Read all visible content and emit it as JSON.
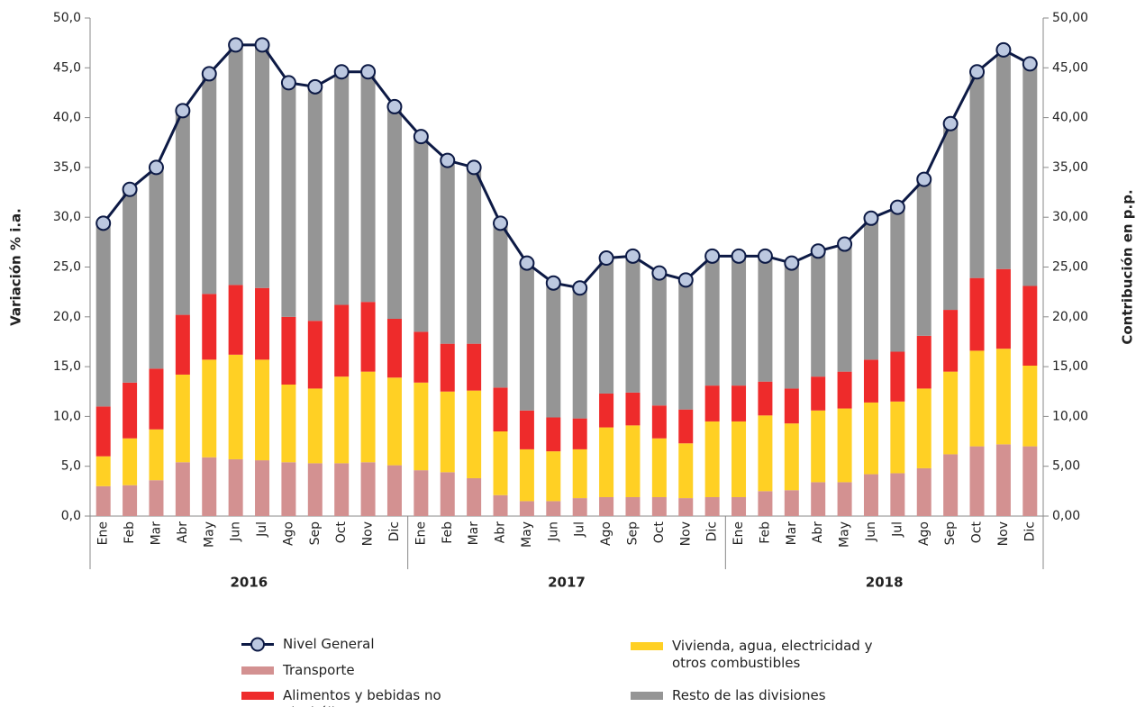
{
  "chart_data": {
    "type": "bar",
    "stacked": true,
    "categories": [
      "Ene",
      "Feb",
      "Mar",
      "Abr",
      "May",
      "Jun",
      "Jul",
      "Ago",
      "Sep",
      "Oct",
      "Nov",
      "Dic",
      "Ene",
      "Feb",
      "Mar",
      "Abr",
      "May",
      "Jun",
      "Jul",
      "Ago",
      "Sep",
      "Oct",
      "Nov",
      "Dic",
      "Ene",
      "Feb",
      "Mar",
      "Abr",
      "May",
      "Jun",
      "Jul",
      "Ago",
      "Sep",
      "Oct",
      "Nov",
      "Dic"
    ],
    "x_groups": [
      "2016",
      "2017",
      "2018"
    ],
    "ylabel": "Variación % i.a.",
    "y2label": "Contribución en p.p.",
    "ylim": [
      0,
      50
    ],
    "yticks": [
      {
        "value": 0,
        "label": "0,0"
      },
      {
        "value": 5,
        "label": "5,0"
      },
      {
        "value": 10,
        "label": "10,0"
      },
      {
        "value": 15,
        "label": "15,0"
      },
      {
        "value": 20,
        "label": "20,0"
      },
      {
        "value": 25,
        "label": "25,0"
      },
      {
        "value": 30,
        "label": "30,0"
      },
      {
        "value": 35,
        "label": "35,0"
      },
      {
        "value": 40,
        "label": "40,0"
      },
      {
        "value": 45,
        "label": "45,0"
      },
      {
        "value": 50,
        "label": "50,0"
      }
    ],
    "y2lim": [
      0,
      50
    ],
    "y2ticks": [
      {
        "value": 0,
        "label": "0,00"
      },
      {
        "value": 5,
        "label": "5,00"
      },
      {
        "value": 10,
        "label": "10,00"
      },
      {
        "value": 15,
        "label": "15,00"
      },
      {
        "value": 20,
        "label": "20,00"
      },
      {
        "value": 25,
        "label": "25,00"
      },
      {
        "value": 30,
        "label": "30,00"
      },
      {
        "value": 35,
        "label": "35,00"
      },
      {
        "value": 40,
        "label": "40,00"
      },
      {
        "value": 45,
        "label": "45,00"
      },
      {
        "value": 50,
        "label": "50,00"
      }
    ],
    "series": [
      {
        "name": "Transporte",
        "color": "#d39191",
        "axis": "y2",
        "values": [
          3.0,
          3.1,
          3.6,
          5.4,
          5.9,
          5.7,
          5.6,
          5.4,
          5.3,
          5.3,
          5.4,
          5.1,
          4.6,
          4.4,
          3.8,
          2.1,
          1.5,
          1.5,
          1.8,
          1.9,
          1.9,
          1.9,
          1.8,
          1.9,
          1.9,
          2.5,
          2.6,
          3.4,
          3.4,
          4.2,
          4.3,
          4.8,
          6.2,
          7.0,
          7.2,
          7.0
        ]
      },
      {
        "name": "Vivienda, agua, electricidad y otros combustibles",
        "color": "#ffd024",
        "axis": "y2",
        "values": [
          3.0,
          4.7,
          5.1,
          8.8,
          9.8,
          10.5,
          10.1,
          7.8,
          7.5,
          8.7,
          9.1,
          8.8,
          8.8,
          8.1,
          8.8,
          6.4,
          5.2,
          5.0,
          4.9,
          7.0,
          7.2,
          5.9,
          5.5,
          7.6,
          7.6,
          7.6,
          6.7,
          7.2,
          7.4,
          7.2,
          7.2,
          8.0,
          8.3,
          9.6,
          9.6,
          8.1
        ]
      },
      {
        "name": "Alimentos y bebidas no alcohólicas",
        "color": "#ee2b2b",
        "axis": "y2",
        "values": [
          5.0,
          5.6,
          6.1,
          6.0,
          6.6,
          7.0,
          7.2,
          6.8,
          6.8,
          7.2,
          7.0,
          5.9,
          5.1,
          4.8,
          4.7,
          4.4,
          3.9,
          3.4,
          3.1,
          3.4,
          3.3,
          3.3,
          3.4,
          3.6,
          3.6,
          3.4,
          3.5,
          3.4,
          3.7,
          4.3,
          5.0,
          5.3,
          6.2,
          7.3,
          8.0,
          8.0
        ]
      },
      {
        "name": "Resto de las divisiones",
        "color": "#959595",
        "axis": "y2",
        "values": [
          18.4,
          19.4,
          20.2,
          20.5,
          22.1,
          24.1,
          24.4,
          23.5,
          23.5,
          23.4,
          23.1,
          21.3,
          19.6,
          18.4,
          17.7,
          16.5,
          14.8,
          13.5,
          13.1,
          13.6,
          13.7,
          13.3,
          13.0,
          13.0,
          13.0,
          12.6,
          12.6,
          12.6,
          12.8,
          14.2,
          14.5,
          15.7,
          18.7,
          20.7,
          22.0,
          22.3
        ]
      },
      {
        "name": "Nivel General",
        "type": "line",
        "color": "#0d1a45",
        "marker_color": "#bcc8e0",
        "values": [
          29.4,
          32.8,
          35.0,
          40.7,
          44.4,
          47.3,
          47.3,
          43.5,
          43.1,
          44.6,
          44.6,
          41.1,
          38.1,
          35.7,
          35.0,
          29.4,
          25.4,
          23.4,
          22.9,
          25.9,
          26.1,
          24.4,
          23.7,
          26.1,
          26.1,
          26.1,
          25.4,
          26.6,
          27.3,
          29.9,
          31.0,
          33.8,
          39.4,
          44.6,
          46.8,
          45.4
        ]
      }
    ]
  }
}
